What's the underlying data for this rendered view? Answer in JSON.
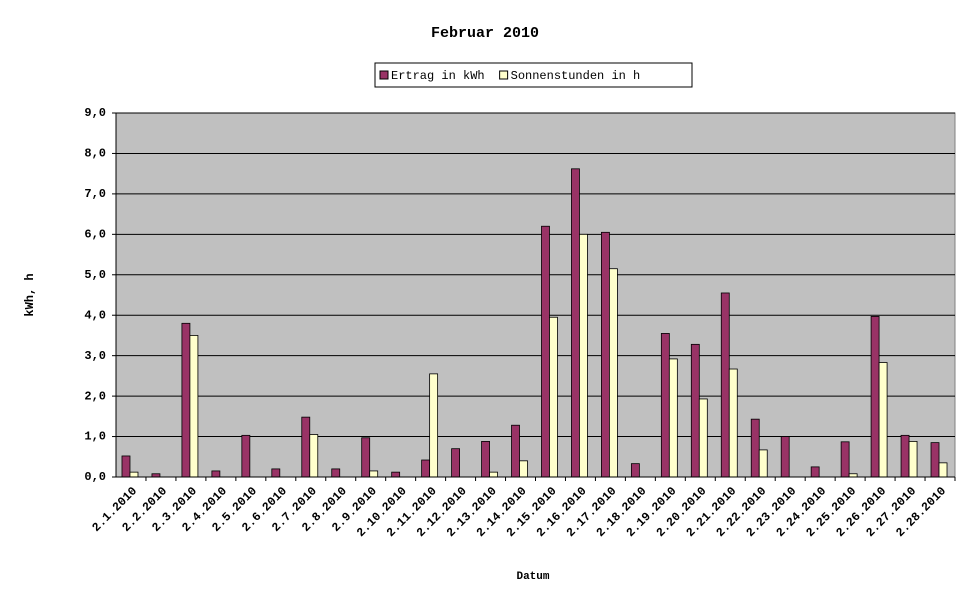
{
  "chart_data": {
    "type": "bar",
    "title": "Februar 2010",
    "xlabel": "Datum",
    "ylabel": "kWh, h",
    "categories": [
      "2.1.2010",
      "2.2.2010",
      "2.3.2010",
      "2.4.2010",
      "2.5.2010",
      "2.6.2010",
      "2.7.2010",
      "2.8.2010",
      "2.9.2010",
      "2.10.2010",
      "2.11.2010",
      "2.12.2010",
      "2.13.2010",
      "2.14.2010",
      "2.15.2010",
      "2.16.2010",
      "2.17.2010",
      "2.18.2010",
      "2.19.2010",
      "2.20.2010",
      "2.21.2010",
      "2.22.2010",
      "2.23.2010",
      "2.24.2010",
      "2.25.2010",
      "2.26.2010",
      "2.27.2010",
      "2.28.2010"
    ],
    "series": [
      {
        "name": "Ertrag in kWh",
        "color": "#993366",
        "values": [
          0.52,
          0.08,
          3.8,
          0.15,
          1.03,
          0.2,
          1.48,
          0.2,
          0.97,
          0.12,
          0.42,
          0.7,
          0.88,
          1.28,
          6.2,
          7.62,
          6.05,
          0.33,
          3.55,
          3.28,
          4.55,
          1.43,
          1.0,
          0.25,
          0.87,
          3.97,
          1.03,
          0.85
        ]
      },
      {
        "name": "Sonnenstunden in h",
        "color": "#ffffcc",
        "values": [
          0.12,
          0,
          3.5,
          0,
          0,
          0,
          1.05,
          0,
          0.15,
          0,
          2.55,
          0,
          0.12,
          0.4,
          3.95,
          6.0,
          5.15,
          0,
          2.92,
          1.93,
          2.67,
          0.67,
          0,
          0,
          0.08,
          2.83,
          0.88,
          0.35
        ]
      }
    ],
    "ylim": [
      0,
      9
    ],
    "yticks": [
      {
        "value": 0,
        "label": "0,0"
      },
      {
        "value": 1,
        "label": "1,0"
      },
      {
        "value": 2,
        "label": "2,0"
      },
      {
        "value": 3,
        "label": "3,0"
      },
      {
        "value": 4,
        "label": "4,0"
      },
      {
        "value": 5,
        "label": "5,0"
      },
      {
        "value": 6,
        "label": "6,0"
      },
      {
        "value": 7,
        "label": "7,0"
      },
      {
        "value": 8,
        "label": "8,0"
      },
      {
        "value": 9,
        "label": "9,0"
      }
    ],
    "grid": true,
    "background": "#c0c0c0"
  }
}
